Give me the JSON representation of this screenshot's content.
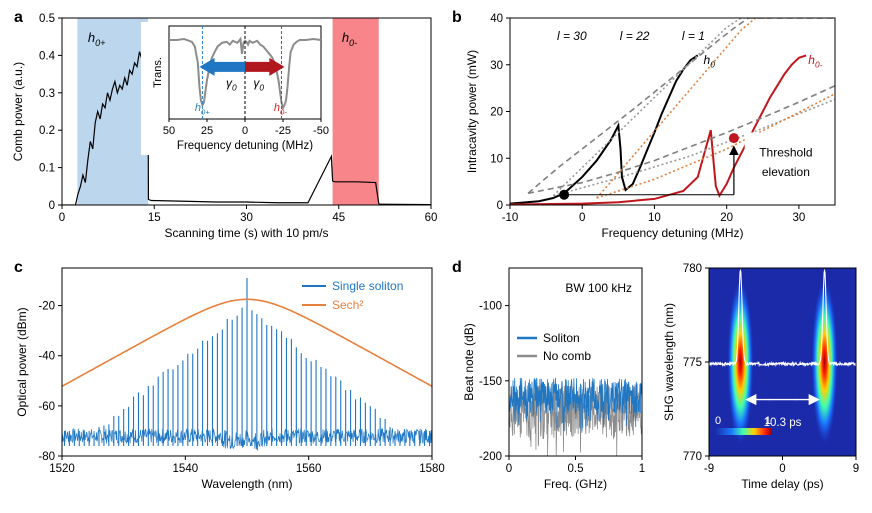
{
  "chart_data": [
    {
      "id": "a",
      "panel_label": "a",
      "type": "line",
      "xlabel": "Scanning time (s) with 10 pm/s",
      "ylabel": "Comb power (a.u.)",
      "xlim": [
        0,
        60
      ],
      "ylim": [
        0,
        0.5
      ],
      "xticks": [
        "0",
        "15",
        "30",
        "45",
        "60"
      ],
      "yticks": [
        "0",
        "0.1",
        "0.2",
        "0.3",
        "0.4",
        "0.5"
      ],
      "bands": [
        {
          "label": "h0+",
          "x0": 2.5,
          "x1": 14,
          "color": "#bcd6ee"
        },
        {
          "label": "h0-",
          "x0": 44,
          "x1": 51.5,
          "color": "#f7858a"
        }
      ],
      "series": [
        {
          "name": "comb power",
          "color": "#000000",
          "x": [
            0,
            2.2,
            2.6,
            3,
            3.4,
            3.8,
            4.2,
            4.6,
            5,
            5.4,
            5.8,
            6.2,
            6.6,
            7,
            7.4,
            7.8,
            8.2,
            8.6,
            9,
            9.4,
            9.8,
            10.2,
            10.6,
            11,
            11.4,
            11.8,
            12.2,
            12.6,
            13,
            13.4,
            13.8,
            14,
            14.05,
            14.5,
            20,
            25,
            30,
            35,
            40,
            43.8,
            44,
            44.1,
            44.5,
            48,
            51,
            51.5,
            51.6,
            52,
            60
          ],
          "y": [
            0,
            0,
            0.03,
            0.05,
            0.08,
            0.06,
            0.12,
            0.17,
            0.15,
            0.22,
            0.25,
            0.23,
            0.27,
            0.26,
            0.3,
            0.28,
            0.31,
            0.33,
            0.3,
            0.32,
            0.31,
            0.34,
            0.32,
            0.36,
            0.35,
            0.38,
            0.37,
            0.41,
            0.39,
            0.42,
            0.44,
            0.3,
            0.015,
            0.012,
            0.01,
            0.008,
            0.008,
            0.006,
            0.006,
            0.13,
            0.065,
            0.063,
            0.062,
            0.062,
            0.06,
            0.005,
            0.002,
            0.002,
            0.001
          ]
        }
      ],
      "labels": {
        "band_left": "h0+",
        "band_right": "h0-"
      },
      "inset": {
        "xlabel": "Frequency detuning (MHz)",
        "ylabel": "Trans.",
        "xticks": [
          "50",
          "25",
          "0",
          "-25",
          "-50"
        ],
        "xlim": [
          50,
          -50
        ],
        "arrow_label": "γ0",
        "left_label": "h0+",
        "right_label": "h0-",
        "trace": {
          "x": [
            50,
            45,
            40,
            35,
            33,
            31,
            30,
            29,
            28,
            27,
            26,
            25,
            24,
            23,
            22,
            20,
            18,
            15,
            12,
            10,
            8,
            5,
            3,
            2,
            1,
            0,
            -1,
            -2,
            -3,
            -5,
            -8,
            -10,
            -12,
            -15,
            -18,
            -20,
            -21,
            -22,
            -23,
            -24,
            -25,
            -26,
            -27,
            -28,
            -29,
            -30,
            -32,
            -34,
            -36,
            -40,
            -45,
            -50
          ],
          "y": [
            0.85,
            0.85,
            0.86,
            0.83,
            0.78,
            0.6,
            0.35,
            0.2,
            0.15,
            0.18,
            0.3,
            0.42,
            0.5,
            0.58,
            0.65,
            0.72,
            0.78,
            0.82,
            0.83,
            0.8,
            0.84,
            0.82,
            0.86,
            0.7,
            0.82,
            0.84,
            0.83,
            0.8,
            0.84,
            0.82,
            0.84,
            0.8,
            0.78,
            0.72,
            0.66,
            0.58,
            0.5,
            0.42,
            0.3,
            0.18,
            0.12,
            0.15,
            0.2,
            0.35,
            0.55,
            0.72,
            0.8,
            0.83,
            0.85,
            0.85,
            0.86,
            0.85
          ]
        }
      }
    },
    {
      "id": "b",
      "panel_label": "b",
      "type": "line",
      "xlabel": "Frequency detuning (MHz)",
      "ylabel": "Intracavity power (mW)",
      "xlim": [
        -10,
        35
      ],
      "ylim": [
        0,
        40
      ],
      "xticks": [
        "-10",
        "0",
        "10",
        "20",
        "30"
      ],
      "yticks": [
        "0",
        "10",
        "20",
        "30",
        "40"
      ],
      "curve_labels": {
        "h0": "h0",
        "h0m": "h0-",
        "l30": "l = 30",
        "l22": "l = 22",
        "l1": "l = 1"
      },
      "series": [
        {
          "name": "h0",
          "color": "#000000",
          "x": [
            -10,
            -6,
            -4,
            -3,
            -2,
            0,
            2,
            4,
            5,
            5.3,
            5.5,
            6,
            7,
            8,
            9,
            10,
            11,
            12,
            13,
            14,
            15,
            16
          ],
          "y": [
            0.3,
            0.8,
            1.5,
            2.2,
            3.2,
            6,
            9.5,
            14,
            17,
            12,
            6,
            3.2,
            4.5,
            8,
            11.8,
            15.5,
            19.5,
            23,
            26.5,
            29,
            31,
            32
          ]
        },
        {
          "name": "h0-",
          "color": "#c0171d",
          "x": [
            -10,
            0,
            5,
            10,
            14,
            16,
            17.8,
            18.2,
            18.5,
            19,
            20,
            21,
            22,
            23,
            24,
            25,
            26,
            27,
            28,
            29,
            30,
            31
          ],
          "y": [
            0.1,
            0.3,
            0.6,
            1.3,
            3,
            6,
            16,
            9,
            4,
            2,
            4.5,
            8,
            11,
            14,
            17,
            20,
            23,
            25.5,
            28,
            30,
            31.5,
            32
          ]
        },
        {
          "name": "l = 30",
          "color": "#7f7f7f",
          "dash": "dash",
          "x": [
            -7.5,
            -5,
            -3,
            -1,
            1,
            3,
            5,
            7,
            9,
            11,
            13,
            15,
            17,
            19,
            21,
            23,
            25,
            27,
            29,
            31,
            33,
            35
          ],
          "y": [
            2.5,
            5.8,
            8.4,
            10.8,
            13.2,
            15.6,
            18,
            20.4,
            22.9,
            25.4,
            27.9,
            30.4,
            32.9,
            35.4,
            37.8,
            40,
            40,
            40,
            40,
            40,
            40,
            40
          ]
        },
        {
          "name": "l = 30 lower",
          "color": "#7f7f7f",
          "dash": "dash",
          "x": [
            -7.5,
            0,
            5,
            10,
            15,
            20,
            25,
            30,
            35
          ],
          "y": [
            2.5,
            4.8,
            7,
            9.5,
            12.5,
            15.5,
            18.7,
            22,
            25.5
          ]
        },
        {
          "name": "l = 22",
          "color": "#9a9a9a",
          "dash": "dot",
          "x": [
            -4,
            -2,
            0,
            2,
            4,
            6,
            8,
            10,
            12,
            14,
            16,
            18,
            20,
            22,
            24
          ],
          "y": [
            2,
            5,
            8,
            11,
            14,
            17,
            20,
            23,
            26,
            29,
            32,
            35,
            38,
            40,
            40
          ]
        },
        {
          "name": "l = 22 lower",
          "color": "#9a9a9a",
          "dash": "dot",
          "x": [
            -4,
            5,
            15,
            25,
            35
          ],
          "y": [
            2,
            5.8,
            10.5,
            16.4,
            22.6
          ]
        },
        {
          "name": "l = 1",
          "color": "#e1803b",
          "dash": "dot",
          "x": [
            2,
            4,
            6,
            8,
            10,
            12,
            14,
            16,
            18,
            20,
            22,
            24,
            26
          ],
          "y": [
            1.5,
            5,
            8.6,
            12.2,
            15.8,
            19.4,
            23,
            26.6,
            30.2,
            33.8,
            37.4,
            40,
            40
          ]
        },
        {
          "name": "l = 1 lower",
          "color": "#e1803b",
          "dash": "dot",
          "x": [
            2,
            10,
            20,
            30,
            35
          ],
          "y": [
            1.5,
            5.5,
            12,
            19.8,
            23.8
          ]
        }
      ],
      "markers": [
        {
          "name": "black point",
          "x": -2.5,
          "y": 2.2,
          "color": "#000000"
        },
        {
          "name": "red point",
          "x": 21,
          "y": 14.3,
          "color": "#c0171d"
        }
      ],
      "annotation": {
        "text_1": "Threshold",
        "text_2": "elevation",
        "arrow_from_y": 2.2,
        "arrow_to_y": 12.5,
        "arrow_x": 21
      }
    },
    {
      "id": "c",
      "panel_label": "c",
      "type": "line",
      "xlabel": "Wavelength (nm)",
      "ylabel": "Optical power (dBm)",
      "xlim": [
        1520,
        1580
      ],
      "ylim": [
        -80,
        -5
      ],
      "xticks": [
        "1520",
        "1540",
        "1560",
        "1580"
      ],
      "yticks": [
        "-80",
        "-60",
        "-40",
        "-20"
      ],
      "center": 1550,
      "line_spacing_nm": 0.8,
      "noise_floor": -72,
      "legend": [
        "Single soliton",
        "Sech²"
      ],
      "series": [
        {
          "name": "Single soliton",
          "color": "#1f77c4"
        },
        {
          "name": "Sech²",
          "color": "#e6803d",
          "peak": -17.5,
          "slope_db_per_nm": 2.05
        }
      ]
    },
    {
      "id": "d1",
      "panel_label": "d",
      "type": "line",
      "xlabel": "Freq. (GHz)",
      "ylabel": "Beat note (dB)",
      "xlim": [
        0,
        1
      ],
      "ylim": [
        -200,
        -75
      ],
      "xticks": [
        "0",
        "0.5",
        "1"
      ],
      "yticks": [
        "-100",
        "-150",
        "-200"
      ],
      "annotation": "BW 100 kHz",
      "legend": [
        "Soliton",
        "No comb"
      ],
      "series": [
        {
          "name": "Soliton",
          "color": "#1f77c4",
          "level": -160
        },
        {
          "name": "No comb",
          "color": "#8c8c8c",
          "level": -170
        }
      ]
    },
    {
      "id": "d2",
      "type": "heatmap",
      "xlabel": "Time delay (ps)",
      "ylabel": "SHG wavelength (nm)",
      "xlim": [
        -9,
        9
      ],
      "ylim": [
        770,
        780
      ],
      "xticks": [
        "-9",
        "0",
        "9"
      ],
      "yticks": [
        "770",
        "775",
        "780"
      ],
      "pulse_centers_ps": [
        -5.15,
        5.15
      ],
      "separation_label": "10.3 ps",
      "colorbar_labels": [
        "0",
        "1"
      ]
    }
  ]
}
